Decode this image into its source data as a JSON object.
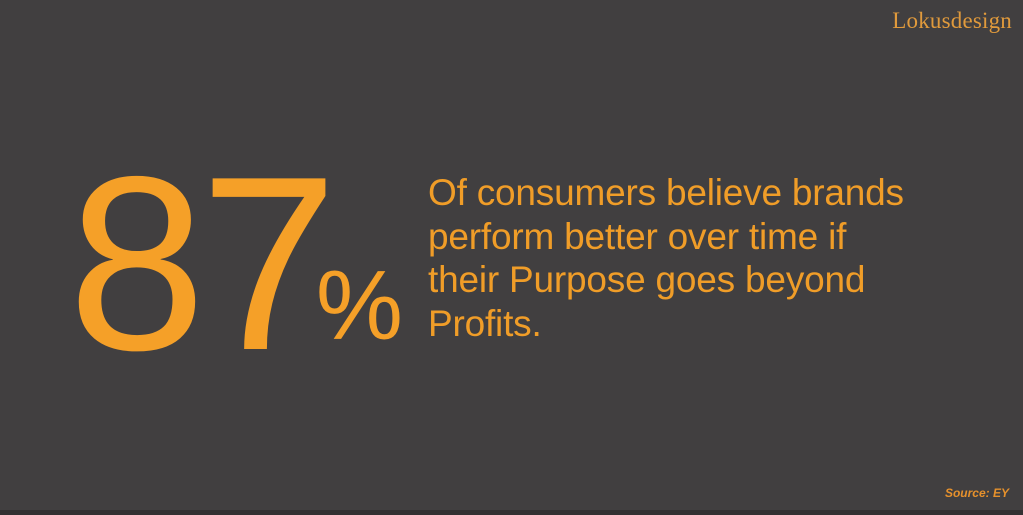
{
  "colors": {
    "background": "#413F40",
    "accent": "#F5A028",
    "statement": "#F09D28",
    "logo": "#E09A3C",
    "source": "#E6912C",
    "footer_strip": "#333132"
  },
  "header": {
    "logo_text": "Lokusdesign"
  },
  "stat": {
    "value": "87",
    "unit": "%",
    "statement": "Of consumers believe brands perform better over time if their Purpose goes beyond Profits.",
    "statement_lines": [
      "Of consumers believe brands",
      "perform better over time if",
      "their Purpose goes beyond",
      "Profits."
    ]
  },
  "footer": {
    "source_label": "Source: EY"
  }
}
